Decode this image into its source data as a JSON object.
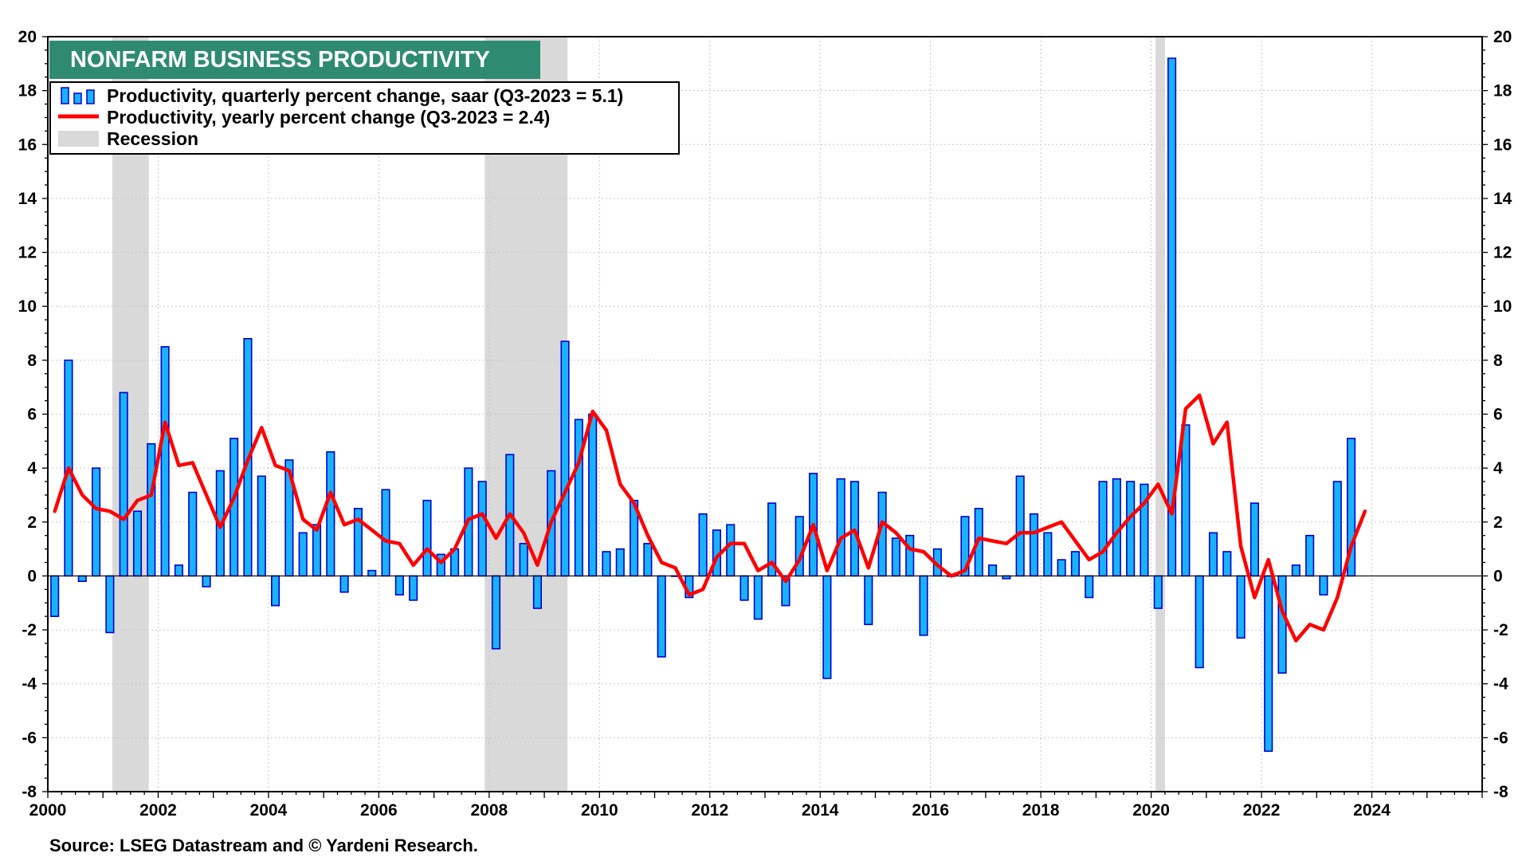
{
  "chart_data": {
    "type": "bar",
    "title": "NONFARM BUSINESS PRODUCTIVITY",
    "source": "Source: LSEG Datastream and © Yardeni Research.",
    "xlim": [
      2000,
      2026
    ],
    "ylim": [
      -8,
      20
    ],
    "x_ticks": [
      2000,
      2002,
      2004,
      2006,
      2008,
      2010,
      2012,
      2014,
      2016,
      2018,
      2020,
      2022,
      2024
    ],
    "y_ticks": [
      -8,
      -6,
      -4,
      -2,
      0,
      2,
      4,
      6,
      8,
      10,
      12,
      14,
      16,
      18,
      20
    ],
    "grid": true,
    "legend_position": "top-left",
    "colors": {
      "bar_fill": "#1ab2ff",
      "bar_edge": "#0000cc",
      "line": "#ff0000",
      "recession": "#d9d9d9",
      "title_bg": "#2e8b72",
      "zero_line": "#000000"
    },
    "legend": [
      {
        "key": "bars",
        "label": "Productivity, quarterly percent change, saar (Q3-2023 = 5.1)"
      },
      {
        "key": "line",
        "label": "Productivity, yearly percent change (Q3-2023 = 2.4)"
      },
      {
        "key": "recession",
        "label": "Recession"
      }
    ],
    "recessions": [
      [
        2001.17,
        2001.83
      ],
      [
        2007.92,
        2009.42
      ],
      [
        2020.08,
        2020.25
      ]
    ],
    "series": [
      {
        "name": "Productivity, quarterly percent change, saar",
        "kind": "bar",
        "start_year": 2000,
        "start_quarter": 1,
        "values": [
          -1.5,
          8.0,
          -0.2,
          4.0,
          -2.1,
          6.8,
          2.4,
          4.9,
          8.5,
          0.4,
          3.1,
          -0.4,
          3.9,
          5.1,
          8.8,
          3.7,
          -1.1,
          4.3,
          1.6,
          1.9,
          4.6,
          -0.6,
          2.5,
          0.2,
          3.2,
          -0.7,
          -0.9,
          2.8,
          0.8,
          1.0,
          4.0,
          3.5,
          -2.7,
          4.5,
          1.2,
          -1.2,
          3.9,
          8.7,
          5.8,
          6.0,
          0.9,
          1.0,
          2.8,
          1.2,
          -3.0,
          0.0,
          -0.8,
          2.3,
          1.7,
          1.9,
          -0.9,
          -1.6,
          2.7,
          -1.1,
          2.2,
          3.8,
          -3.8,
          3.6,
          3.5,
          -1.8,
          3.1,
          1.4,
          1.5,
          -2.2,
          1.0,
          0.0,
          2.2,
          2.5,
          0.4,
          -0.1,
          3.7,
          2.3,
          1.6,
          0.6,
          0.9,
          -0.8,
          3.5,
          3.6,
          3.5,
          3.4,
          -1.2,
          19.2,
          5.6,
          -3.4,
          1.6,
          0.9,
          -2.3,
          2.7,
          -6.5,
          -3.6,
          0.4,
          1.5,
          -0.7,
          3.5,
          5.1
        ]
      },
      {
        "name": "Productivity, yearly percent change",
        "kind": "line",
        "start_year": 2000,
        "start_quarter": 1,
        "values": [
          2.4,
          4.0,
          3.0,
          2.5,
          2.4,
          2.1,
          2.8,
          3.0,
          5.7,
          4.1,
          4.2,
          3.0,
          1.8,
          2.9,
          4.3,
          5.5,
          4.1,
          3.9,
          2.1,
          1.7,
          3.1,
          1.9,
          2.1,
          1.7,
          1.3,
          1.2,
          0.4,
          1.0,
          0.5,
          1.0,
          2.1,
          2.3,
          1.4,
          2.3,
          1.6,
          0.4,
          2.0,
          3.1,
          4.2,
          6.1,
          5.4,
          3.4,
          2.7,
          1.5,
          0.5,
          0.3,
          -0.7,
          -0.5,
          0.7,
          1.2,
          1.2,
          0.2,
          0.5,
          -0.2,
          0.6,
          1.9,
          0.2,
          1.4,
          1.7,
          0.3,
          2.0,
          1.6,
          1.0,
          0.9,
          0.4,
          0.0,
          0.2,
          1.4,
          1.3,
          1.2,
          1.6,
          1.6,
          1.8,
          2.0,
          1.3,
          0.6,
          0.9,
          1.6,
          2.2,
          2.7,
          3.4,
          2.3,
          6.2,
          6.7,
          4.9,
          5.7,
          1.1,
          -0.8,
          0.6,
          -1.3,
          -2.4,
          -1.8,
          -2.0,
          -0.8,
          1.1,
          2.4
        ]
      }
    ]
  }
}
